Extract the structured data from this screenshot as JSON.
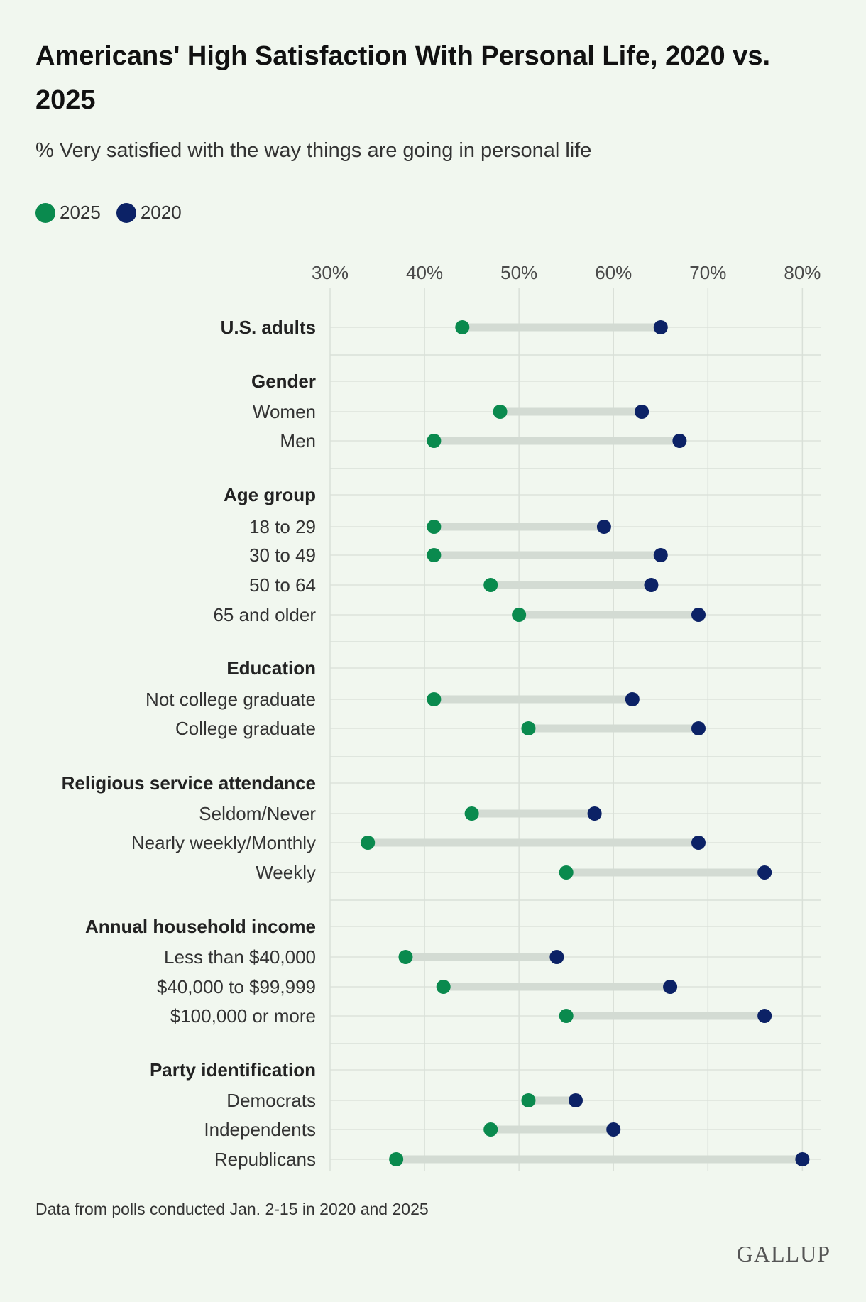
{
  "title": "Americans' High Satisfaction With Personal Life, 2020 vs. 2025",
  "subtitle": "% Very satisfied with the way things are going in personal life",
  "footnote": "Data from polls conducted Jan. 2-15 in 2020 and 2025",
  "logo": "GALLUP",
  "colors": {
    "s2025": "#0a8a4e",
    "s2020": "#0c2266",
    "connector": "#d3dbd3",
    "grid": "#d9e0d8"
  },
  "chart_data": {
    "type": "dumbbell",
    "xlim": [
      30,
      82
    ],
    "ticks": [
      30,
      40,
      50,
      60,
      70,
      80
    ],
    "tick_labels": [
      "30%",
      "40%",
      "50%",
      "60%",
      "70%",
      "80%"
    ],
    "legend_position": "top-left",
    "series": [
      {
        "name": "2025",
        "color": "#0a8a4e"
      },
      {
        "name": "2020",
        "color": "#0c2266"
      }
    ],
    "rows": [
      {
        "label": "U.S. adults",
        "bold": true,
        "v2025": 44,
        "v2020": 65
      },
      {
        "label": "Gender",
        "bold": true,
        "header": true
      },
      {
        "label": "Women",
        "v2025": 48,
        "v2020": 63
      },
      {
        "label": "Men",
        "v2025": 41,
        "v2020": 67
      },
      {
        "label": "Age group",
        "bold": true,
        "header": true
      },
      {
        "label": "18 to 29",
        "v2025": 41,
        "v2020": 59
      },
      {
        "label": "30 to 49",
        "v2025": 41,
        "v2020": 65
      },
      {
        "label": "50 to 64",
        "v2025": 47,
        "v2020": 64
      },
      {
        "label": "65 and older",
        "v2025": 50,
        "v2020": 69
      },
      {
        "label": "Education",
        "bold": true,
        "header": true
      },
      {
        "label": "Not college graduate",
        "v2025": 41,
        "v2020": 62
      },
      {
        "label": "College graduate",
        "v2025": 51,
        "v2020": 69
      },
      {
        "label": "Religious service attendance",
        "bold": true,
        "header": true
      },
      {
        "label": "Seldom/Never",
        "v2025": 45,
        "v2020": 58
      },
      {
        "label": "Nearly weekly/Monthly",
        "v2025": 34,
        "v2020": 69
      },
      {
        "label": "Weekly",
        "v2025": 55,
        "v2020": 76
      },
      {
        "label": "Annual household income",
        "bold": true,
        "header": true
      },
      {
        "label": "Less than $40,000",
        "v2025": 38,
        "v2020": 54
      },
      {
        "label": "$40,000 to $99,999",
        "v2025": 42,
        "v2020": 66
      },
      {
        "label": "$100,000 or more",
        "v2025": 55,
        "v2020": 76
      },
      {
        "label": "Party identification",
        "bold": true,
        "header": true
      },
      {
        "label": "Democrats",
        "v2025": 51,
        "v2020": 56
      },
      {
        "label": "Independents",
        "v2025": 47,
        "v2020": 60
      },
      {
        "label": "Republicans",
        "v2025": 37,
        "v2020": 80
      }
    ]
  }
}
